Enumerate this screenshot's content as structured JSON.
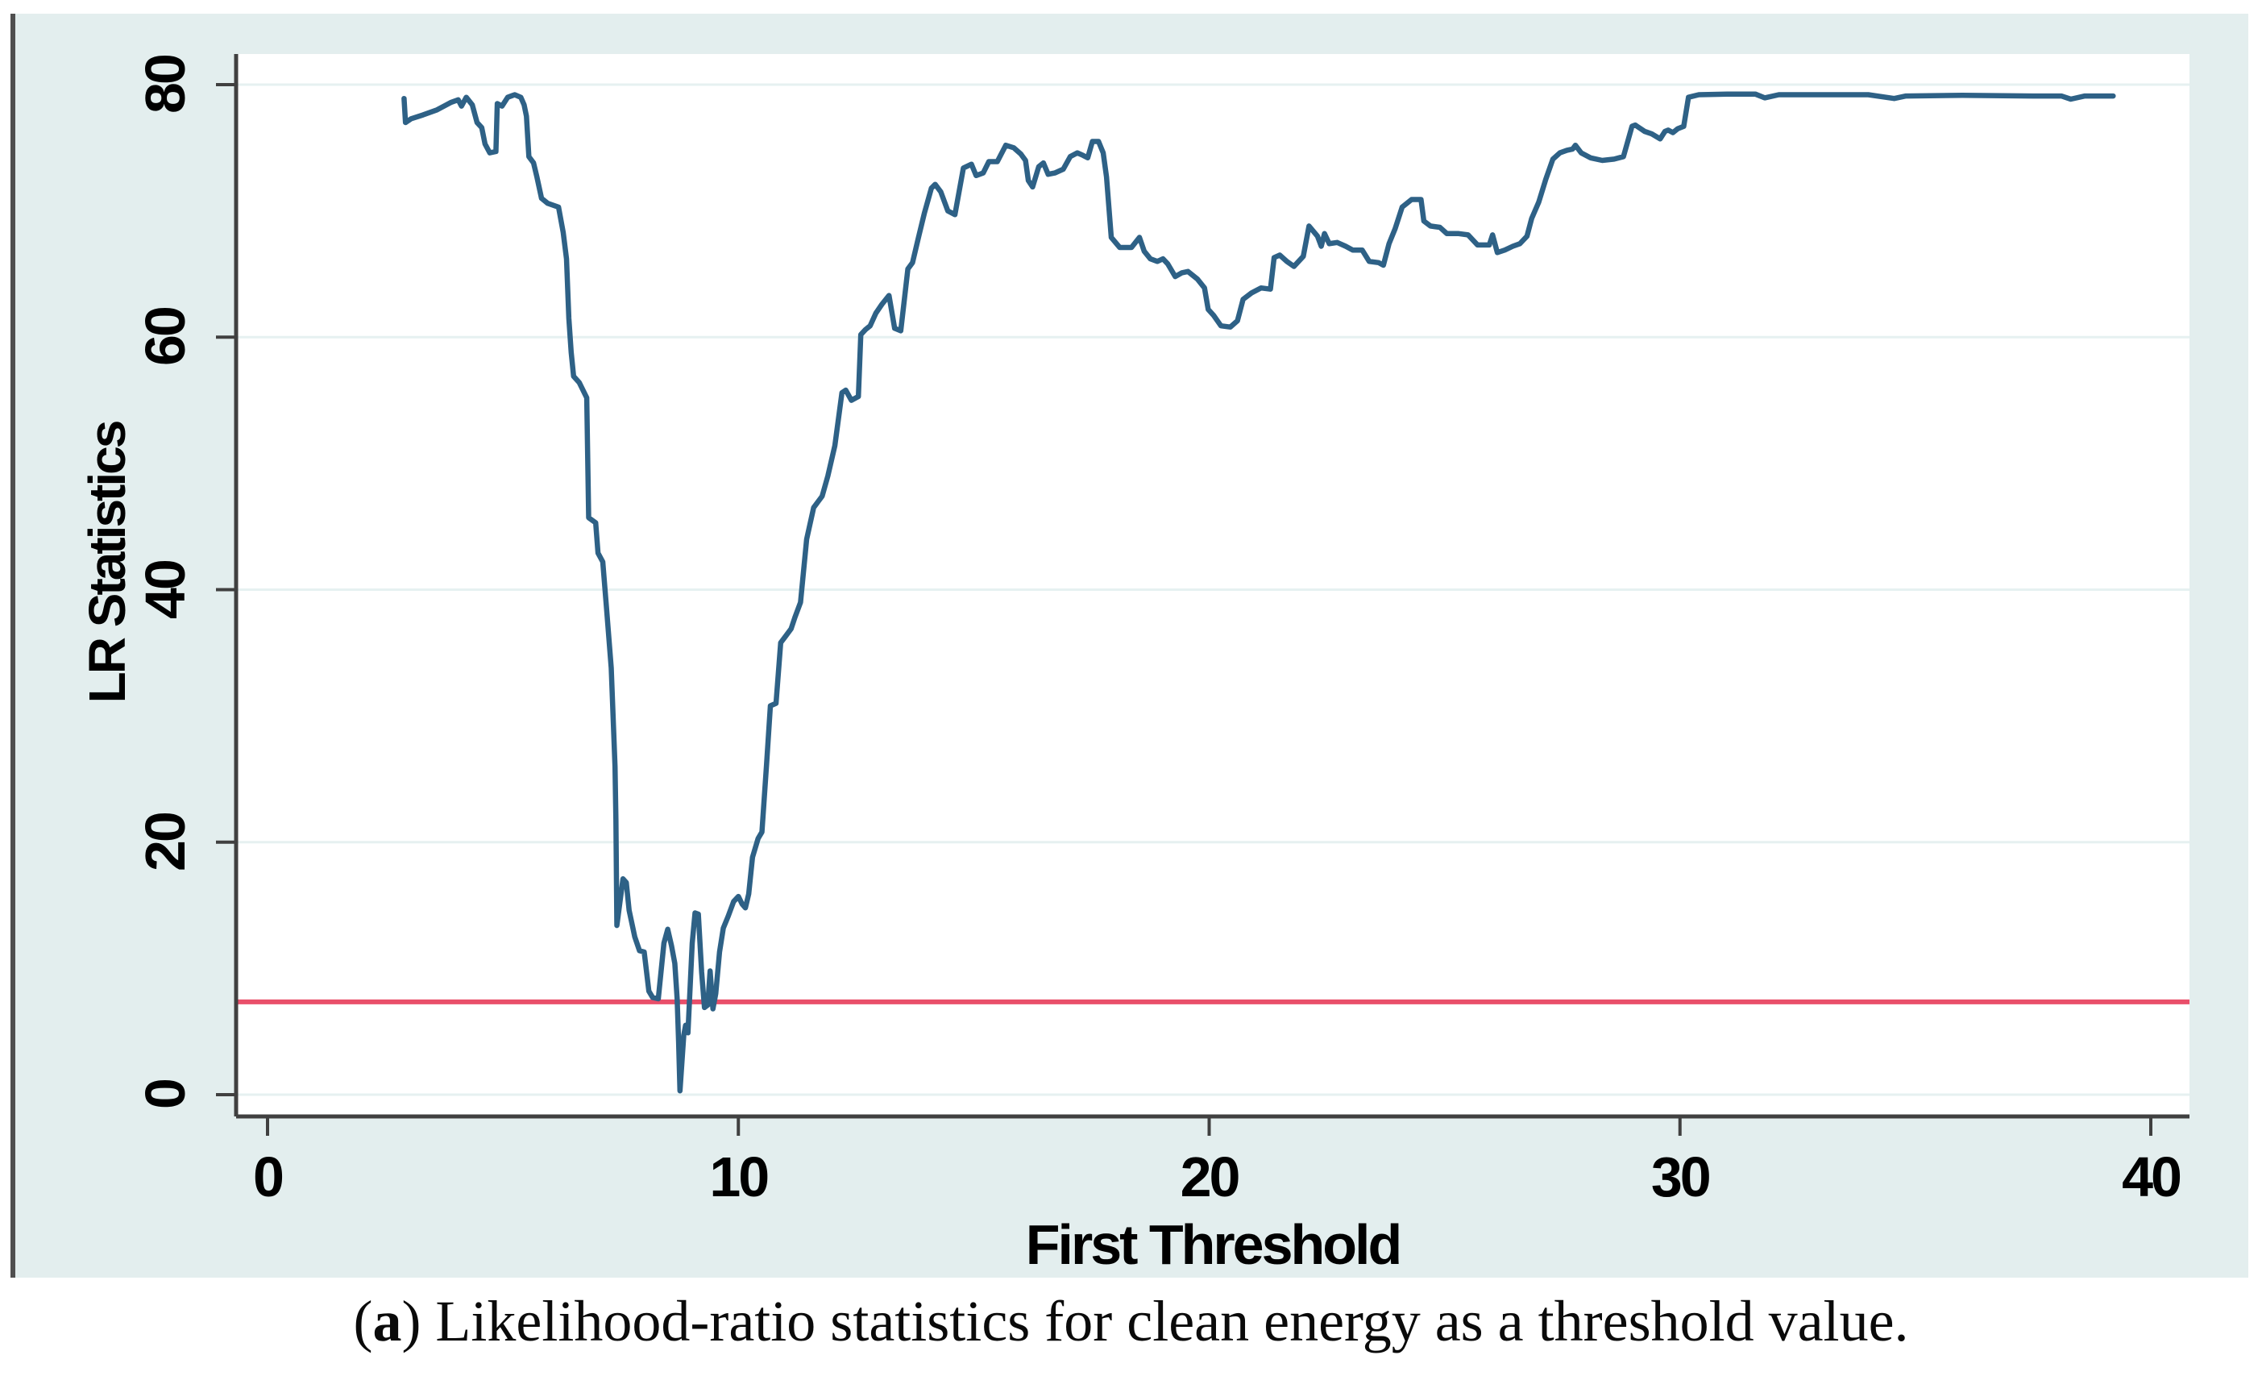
{
  "caption": {
    "open": "(",
    "label": "a",
    "rest": ") Likelihood-ratio statistics for clean energy as a threshold value."
  },
  "chart_data": {
    "type": "line",
    "title": "",
    "xlabel": "First Threshold",
    "ylabel": "LR Statistics",
    "xlim": [
      0,
      40
    ],
    "ylim": [
      0,
      80
    ],
    "x_ticks": [
      0,
      10,
      20,
      30,
      40
    ],
    "y_ticks": [
      0,
      20,
      40,
      60,
      80
    ],
    "x_tick_labels": [
      "0",
      "10",
      "20",
      "30",
      "40"
    ],
    "y_tick_labels": [
      "0",
      "20",
      "40",
      "60",
      "80"
    ],
    "grid": "horizontal",
    "legend": "none",
    "colors": {
      "series_line": "#2e6186",
      "critical_line": "#e94f6a",
      "plot_background": "#ffffff",
      "outer_background": "#e3eeee",
      "gridline": "#e6f1f1",
      "axis": "#404040"
    },
    "critical_line": {
      "value": 7.35
    },
    "series": [
      {
        "name": "LR statistics",
        "points": [
          [
            2.9,
            78.9
          ],
          [
            2.93,
            77.0
          ],
          [
            3.05,
            77.3
          ],
          [
            3.3,
            77.6
          ],
          [
            3.6,
            78.0
          ],
          [
            3.9,
            78.6
          ],
          [
            4.05,
            78.8
          ],
          [
            4.12,
            78.3
          ],
          [
            4.22,
            79.0
          ],
          [
            4.35,
            78.4
          ],
          [
            4.45,
            77.0
          ],
          [
            4.55,
            76.6
          ],
          [
            4.62,
            75.3
          ],
          [
            4.72,
            74.6
          ],
          [
            4.85,
            74.7
          ],
          [
            4.88,
            78.5
          ],
          [
            4.98,
            78.3
          ],
          [
            5.1,
            79.0
          ],
          [
            5.25,
            79.2
          ],
          [
            5.38,
            79.0
          ],
          [
            5.45,
            78.4
          ],
          [
            5.5,
            77.5
          ],
          [
            5.55,
            74.3
          ],
          [
            5.65,
            73.8
          ],
          [
            5.72,
            72.7
          ],
          [
            5.82,
            71.0
          ],
          [
            5.95,
            70.6
          ],
          [
            6.18,
            70.3
          ],
          [
            6.28,
            68.3
          ],
          [
            6.35,
            66.2
          ],
          [
            6.4,
            61.5
          ],
          [
            6.45,
            58.8
          ],
          [
            6.5,
            56.9
          ],
          [
            6.62,
            56.4
          ],
          [
            6.78,
            55.2
          ],
          [
            6.82,
            45.7
          ],
          [
            6.97,
            45.3
          ],
          [
            7.02,
            42.9
          ],
          [
            7.12,
            42.2
          ],
          [
            7.2,
            38.5
          ],
          [
            7.3,
            33.8
          ],
          [
            7.38,
            26.0
          ],
          [
            7.4,
            21.8
          ],
          [
            7.42,
            13.4
          ],
          [
            7.55,
            17.1
          ],
          [
            7.62,
            16.8
          ],
          [
            7.68,
            14.6
          ],
          [
            7.8,
            12.5
          ],
          [
            7.9,
            11.4
          ],
          [
            8.0,
            11.3
          ],
          [
            8.1,
            8.2
          ],
          [
            8.18,
            7.7
          ],
          [
            8.3,
            7.6
          ],
          [
            8.42,
            12.0
          ],
          [
            8.5,
            13.1
          ],
          [
            8.58,
            11.8
          ],
          [
            8.65,
            10.4
          ],
          [
            8.7,
            7.6
          ],
          [
            8.73,
            4.2
          ],
          [
            8.76,
            0.3
          ],
          [
            8.84,
            4.7
          ],
          [
            8.88,
            5.5
          ],
          [
            8.93,
            4.9
          ],
          [
            9.02,
            12.0
          ],
          [
            9.08,
            14.4
          ],
          [
            9.15,
            14.3
          ],
          [
            9.22,
            9.7
          ],
          [
            9.28,
            6.9
          ],
          [
            9.35,
            7.1
          ],
          [
            9.4,
            9.8
          ],
          [
            9.46,
            6.8
          ],
          [
            9.52,
            8.0
          ],
          [
            9.6,
            11.3
          ],
          [
            9.68,
            13.2
          ],
          [
            9.78,
            14.1
          ],
          [
            9.9,
            15.3
          ],
          [
            10.0,
            15.7
          ],
          [
            10.08,
            15.1
          ],
          [
            10.15,
            14.8
          ],
          [
            10.22,
            15.9
          ],
          [
            10.3,
            18.8
          ],
          [
            10.42,
            20.3
          ],
          [
            10.5,
            20.8
          ],
          [
            10.6,
            26.2
          ],
          [
            10.68,
            30.8
          ],
          [
            10.8,
            31.0
          ],
          [
            10.9,
            35.8
          ],
          [
            11.0,
            36.3
          ],
          [
            11.12,
            36.9
          ],
          [
            11.2,
            37.8
          ],
          [
            11.32,
            39.0
          ],
          [
            11.45,
            44.0
          ],
          [
            11.6,
            46.5
          ],
          [
            11.78,
            47.4
          ],
          [
            11.9,
            49.0
          ],
          [
            12.05,
            51.4
          ],
          [
            12.2,
            55.6
          ],
          [
            12.28,
            55.8
          ],
          [
            12.4,
            55.0
          ],
          [
            12.55,
            55.3
          ],
          [
            12.6,
            60.2
          ],
          [
            12.7,
            60.6
          ],
          [
            12.8,
            60.9
          ],
          [
            12.92,
            61.9
          ],
          [
            13.05,
            62.6
          ],
          [
            13.2,
            63.3
          ],
          [
            13.32,
            60.7
          ],
          [
            13.45,
            60.5
          ],
          [
            13.6,
            65.4
          ],
          [
            13.7,
            65.9
          ],
          [
            13.82,
            67.8
          ],
          [
            13.95,
            69.8
          ],
          [
            14.1,
            71.8
          ],
          [
            14.18,
            72.1
          ],
          [
            14.3,
            71.5
          ],
          [
            14.45,
            70.0
          ],
          [
            14.6,
            69.7
          ],
          [
            14.78,
            73.4
          ],
          [
            14.95,
            73.7
          ],
          [
            15.05,
            72.8
          ],
          [
            15.2,
            73.0
          ],
          [
            15.32,
            73.9
          ],
          [
            15.5,
            73.9
          ],
          [
            15.68,
            75.2
          ],
          [
            15.85,
            75.0
          ],
          [
            16.0,
            74.5
          ],
          [
            16.1,
            74.0
          ],
          [
            16.16,
            72.4
          ],
          [
            16.25,
            71.9
          ],
          [
            16.38,
            73.5
          ],
          [
            16.48,
            73.8
          ],
          [
            16.58,
            72.9
          ],
          [
            16.72,
            73.0
          ],
          [
            16.9,
            73.3
          ],
          [
            17.05,
            74.3
          ],
          [
            17.2,
            74.6
          ],
          [
            17.32,
            74.4
          ],
          [
            17.42,
            74.2
          ],
          [
            17.52,
            75.5
          ],
          [
            17.65,
            75.5
          ],
          [
            17.75,
            74.6
          ],
          [
            17.82,
            72.7
          ],
          [
            17.92,
            67.9
          ],
          [
            18.1,
            67.1
          ],
          [
            18.35,
            67.1
          ],
          [
            18.52,
            67.9
          ],
          [
            18.62,
            66.8
          ],
          [
            18.75,
            66.2
          ],
          [
            18.9,
            66.0
          ],
          [
            19.02,
            66.2
          ],
          [
            19.12,
            65.8
          ],
          [
            19.28,
            64.8
          ],
          [
            19.42,
            65.1
          ],
          [
            19.55,
            65.2
          ],
          [
            19.75,
            64.6
          ],
          [
            19.9,
            63.9
          ],
          [
            19.98,
            62.2
          ],
          [
            20.1,
            61.7
          ],
          [
            20.25,
            60.9
          ],
          [
            20.45,
            60.8
          ],
          [
            20.6,
            61.3
          ],
          [
            20.72,
            63.0
          ],
          [
            20.9,
            63.5
          ],
          [
            21.1,
            63.9
          ],
          [
            21.3,
            63.8
          ],
          [
            21.38,
            66.3
          ],
          [
            21.5,
            66.5
          ],
          [
            21.65,
            66.0
          ],
          [
            21.8,
            65.6
          ],
          [
            22.0,
            66.4
          ],
          [
            22.12,
            68.8
          ],
          [
            22.3,
            68.0
          ],
          [
            22.38,
            67.2
          ],
          [
            22.45,
            68.2
          ],
          [
            22.55,
            67.4
          ],
          [
            22.72,
            67.5
          ],
          [
            22.9,
            67.2
          ],
          [
            23.05,
            66.9
          ],
          [
            23.25,
            66.9
          ],
          [
            23.4,
            66.0
          ],
          [
            23.6,
            65.9
          ],
          [
            23.7,
            65.7
          ],
          [
            23.82,
            67.4
          ],
          [
            23.95,
            68.6
          ],
          [
            24.1,
            70.3
          ],
          [
            24.3,
            70.9
          ],
          [
            24.5,
            70.9
          ],
          [
            24.56,
            69.2
          ],
          [
            24.7,
            68.8
          ],
          [
            24.9,
            68.7
          ],
          [
            25.05,
            68.2
          ],
          [
            25.3,
            68.2
          ],
          [
            25.5,
            68.1
          ],
          [
            25.7,
            67.3
          ],
          [
            25.95,
            67.3
          ],
          [
            26.02,
            68.1
          ],
          [
            26.12,
            66.7
          ],
          [
            26.28,
            66.9
          ],
          [
            26.45,
            67.2
          ],
          [
            26.6,
            67.4
          ],
          [
            26.75,
            68.0
          ],
          [
            26.85,
            69.4
          ],
          [
            27.0,
            70.7
          ],
          [
            27.15,
            72.5
          ],
          [
            27.3,
            74.1
          ],
          [
            27.45,
            74.6
          ],
          [
            27.6,
            74.8
          ],
          [
            27.72,
            74.9
          ],
          [
            27.78,
            75.2
          ],
          [
            27.9,
            74.6
          ],
          [
            28.1,
            74.2
          ],
          [
            28.35,
            74.0
          ],
          [
            28.6,
            74.1
          ],
          [
            28.8,
            74.3
          ],
          [
            28.98,
            76.7
          ],
          [
            29.05,
            76.8
          ],
          [
            29.25,
            76.3
          ],
          [
            29.4,
            76.1
          ],
          [
            29.58,
            75.7
          ],
          [
            29.68,
            76.3
          ],
          [
            29.75,
            76.4
          ],
          [
            29.85,
            76.2
          ],
          [
            29.95,
            76.5
          ],
          [
            30.08,
            76.7
          ],
          [
            30.18,
            79.0
          ],
          [
            30.4,
            79.2
          ],
          [
            31.0,
            79.25
          ],
          [
            31.6,
            79.25
          ],
          [
            31.8,
            78.95
          ],
          [
            32.1,
            79.2
          ],
          [
            33.0,
            79.2
          ],
          [
            34.0,
            79.2
          ],
          [
            34.55,
            78.9
          ],
          [
            34.8,
            79.1
          ],
          [
            36.0,
            79.15
          ],
          [
            37.5,
            79.1
          ],
          [
            38.1,
            79.1
          ],
          [
            38.3,
            78.85
          ],
          [
            38.6,
            79.1
          ],
          [
            39.2,
            79.1
          ]
        ]
      }
    ]
  }
}
